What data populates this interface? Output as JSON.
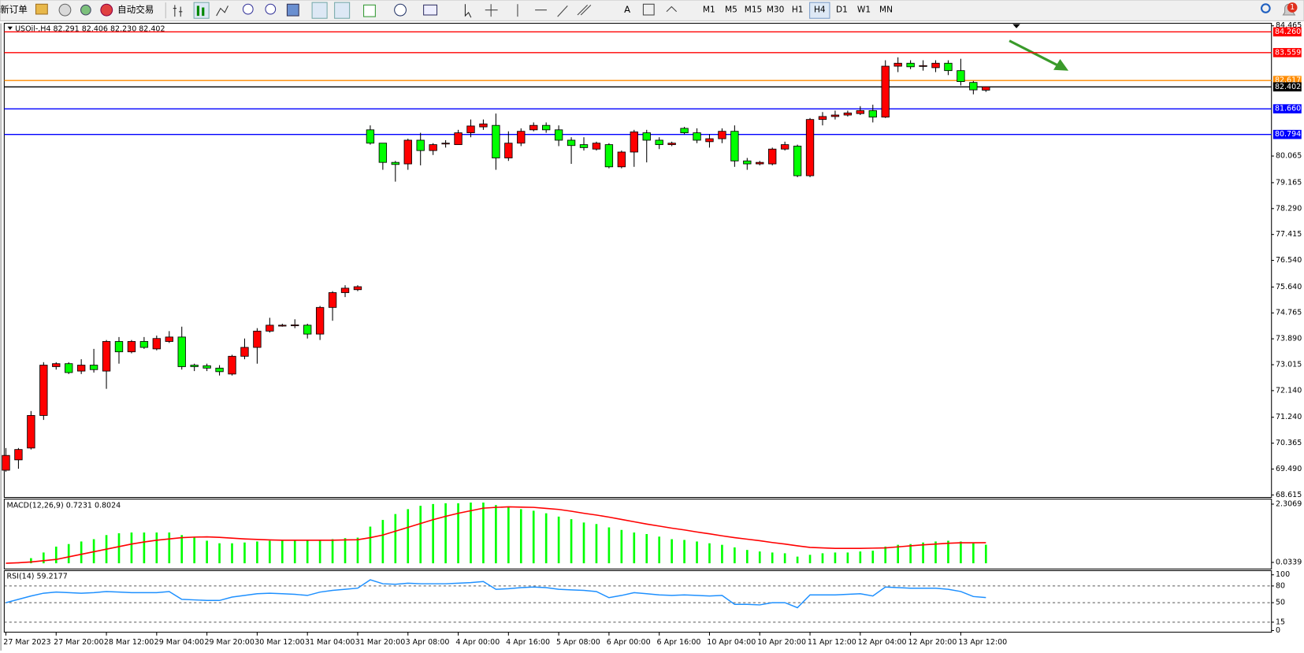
{
  "toolbar": {
    "new_order": "新订单",
    "auto_trade": "自动交易",
    "timeframes": [
      "M1",
      "M5",
      "M15",
      "M30",
      "H1",
      "H4",
      "D1",
      "W1",
      "MN"
    ],
    "active_timeframe": "H4",
    "notifications": "1"
  },
  "chart_data": [
    {
      "type": "candlestick",
      "title": "USOil-,H4  82.291 82.406 82.230 82.402",
      "categories": [
        "27 Mar 2023",
        null,
        null,
        null,
        "27 Mar 20:00",
        null,
        null,
        null,
        "28 Mar 12:00",
        null,
        null,
        null,
        "29 Mar 04:00",
        null,
        null,
        null,
        "29 Mar 20:00",
        null,
        null,
        null,
        "30 Mar 12:00",
        null,
        null,
        null,
        "31 Mar 04:00",
        null,
        null,
        null,
        "31 Mar 20:00",
        null,
        null,
        null,
        "3 Apr 08:00",
        null,
        null,
        null,
        "4 Apr 00:00",
        null,
        null,
        null,
        "4 Apr 16:00",
        null,
        null,
        null,
        "5 Apr 08:00",
        null,
        null,
        null,
        "6 Apr 00:00",
        null,
        null,
        null,
        "6 Apr 16:00",
        null,
        null,
        null,
        "10 Apr 04:00",
        null,
        null,
        null,
        "10 Apr 20:00",
        null,
        null,
        null,
        "11 Apr 12:00",
        null,
        null,
        null,
        "12 Apr 04:00",
        null,
        null,
        null,
        "12 Apr 20:00",
        null,
        null,
        null,
        "13 Apr 12:00",
        null,
        null
      ],
      "open": [
        69.45,
        69.8,
        70.2,
        71.3,
        72.95,
        73.05,
        72.8,
        73.0,
        72.8,
        73.8,
        73.45,
        73.8,
        73.55,
        73.8,
        73.95,
        73.0,
        72.98,
        72.9,
        72.7,
        73.3,
        73.6,
        74.15,
        74.32,
        74.33,
        74.35,
        74.05,
        74.95,
        75.45,
        75.55,
        80.95,
        80.5,
        79.85,
        79.8,
        80.6,
        80.25,
        80.48,
        80.45,
        80.85,
        81.05,
        81.1,
        80.0,
        80.5,
        80.95,
        81.1,
        80.95,
        80.6,
        80.45,
        80.3,
        80.45,
        79.7,
        80.2,
        80.85,
        80.6,
        80.45,
        81.0,
        80.85,
        80.55,
        80.65,
        80.9,
        79.9,
        79.8,
        79.8,
        80.3,
        80.4,
        79.4,
        81.3,
        81.4,
        81.45,
        81.5,
        81.6,
        81.38,
        83.1,
        83.2,
        83.1,
        83.05,
        83.2,
        82.95,
        82.55,
        82.291
      ],
      "high": [
        70.2,
        70.2,
        71.45,
        73.1,
        73.1,
        73.1,
        73.2,
        73.55,
        73.85,
        73.95,
        73.85,
        73.95,
        74.0,
        74.15,
        74.3,
        73.05,
        73.05,
        73.0,
        73.35,
        73.9,
        74.25,
        74.6,
        74.4,
        74.55,
        74.4,
        75.0,
        75.5,
        75.7,
        75.7,
        81.1,
        80.5,
        79.9,
        80.65,
        80.85,
        80.5,
        80.6,
        80.95,
        81.3,
        81.3,
        81.5,
        80.9,
        81.0,
        81.2,
        81.2,
        81.1,
        80.7,
        80.7,
        80.55,
        80.5,
        80.25,
        80.95,
        80.95,
        80.7,
        80.55,
        81.05,
        81.0,
        80.8,
        81.0,
        81.1,
        80.0,
        79.9,
        80.35,
        80.55,
        80.45,
        81.35,
        81.55,
        81.6,
        81.6,
        81.75,
        81.8,
        83.3,
        83.4,
        83.3,
        83.3,
        83.3,
        83.3,
        83.35,
        82.6,
        82.406
      ],
      "low": [
        69.4,
        69.5,
        70.15,
        71.15,
        72.85,
        72.7,
        72.7,
        72.75,
        72.2,
        73.05,
        73.4,
        73.55,
        73.5,
        73.75,
        72.85,
        72.8,
        72.8,
        72.65,
        72.65,
        73.2,
        73.05,
        74.1,
        74.3,
        74.25,
        73.9,
        73.85,
        74.5,
        75.3,
        75.5,
        80.45,
        79.6,
        79.2,
        79.6,
        79.75,
        80.1,
        80.35,
        80.45,
        80.7,
        80.95,
        79.6,
        79.9,
        80.4,
        80.9,
        80.85,
        80.4,
        79.8,
        80.25,
        80.25,
        79.65,
        79.65,
        79.7,
        79.85,
        80.3,
        80.4,
        80.8,
        80.5,
        80.35,
        80.5,
        79.7,
        79.6,
        79.75,
        79.75,
        80.25,
        79.35,
        79.35,
        81.1,
        81.3,
        81.4,
        81.45,
        81.2,
        81.35,
        82.9,
        83.0,
        82.95,
        82.9,
        82.8,
        82.45,
        82.15,
        82.23
      ],
      "close": [
        69.95,
        70.15,
        71.3,
        73.0,
        73.05,
        72.75,
        73.0,
        72.85,
        73.8,
        73.45,
        73.8,
        73.6,
        73.9,
        73.95,
        72.95,
        72.95,
        72.9,
        72.78,
        73.3,
        73.6,
        74.15,
        74.35,
        74.35,
        74.36,
        74.05,
        74.95,
        75.45,
        75.6,
        75.65,
        80.5,
        79.85,
        79.78,
        80.6,
        80.25,
        80.45,
        80.5,
        80.85,
        81.08,
        81.15,
        80.0,
        80.5,
        80.9,
        81.1,
        80.95,
        80.6,
        80.42,
        80.35,
        80.5,
        79.7,
        80.2,
        80.88,
        80.6,
        80.45,
        80.5,
        80.85,
        80.6,
        80.65,
        80.9,
        79.9,
        79.8,
        79.85,
        80.3,
        80.45,
        79.4,
        81.3,
        81.4,
        81.45,
        81.52,
        81.6,
        81.38,
        83.1,
        83.2,
        83.08,
        83.12,
        83.2,
        82.95,
        82.58,
        82.3,
        82.402
      ],
      "up_color": "#ff0000",
      "down_color": "#00ff00",
      "ylim": [
        68.615,
        84.465
      ],
      "yticks": [
        84.465,
        80.065,
        79.165,
        {
          "value": 78.29,
          "label": "78.290"
        },
        77.415,
        {
          "value": 76.54,
          "label": "76.540"
        },
        {
          "value": 75.64,
          "label": "75.640"
        },
        74.765,
        {
          "value": 73.89,
          "label": "73.890"
        },
        73.015,
        {
          "value": 72.14,
          "label": "72.140"
        },
        {
          "value": 71.24,
          "label": "71.240"
        },
        70.365,
        {
          "value": 69.49,
          "label": "69.490"
        },
        68.615
      ],
      "levels": [
        {
          "value": 84.26,
          "label": "84.260",
          "color": "#ff0000"
        },
        {
          "value": 83.559,
          "label": "83.559",
          "color": "#ff0000"
        },
        {
          "value": 82.617,
          "label": "82.617",
          "color": "#ff8c00"
        },
        {
          "value": 82.402,
          "label": "82.402",
          "color": "#000000"
        },
        {
          "value": 81.66,
          "label": "81.660",
          "color": "#0000ff"
        },
        {
          "value": 80.794,
          "label": "80.794",
          "color": "#0000ff"
        }
      ],
      "grid": false
    },
    {
      "type": "macd",
      "title": "MACD(12,26,9) 0.7231 0.8024",
      "histogram": {
        "color": "#00ff00",
        "values": [
          0.0,
          0.03,
          0.2,
          0.42,
          0.65,
          0.75,
          0.85,
          0.94,
          1.1,
          1.17,
          1.2,
          1.2,
          1.2,
          1.2,
          1.1,
          1.0,
          0.88,
          0.78,
          0.78,
          0.81,
          0.85,
          0.88,
          0.88,
          0.88,
          0.88,
          0.91,
          0.94,
          0.98,
          1.0,
          1.43,
          1.69,
          1.92,
          2.11,
          2.24,
          2.31,
          2.34,
          2.34,
          2.37,
          2.37,
          2.27,
          2.21,
          2.11,
          2.05,
          1.95,
          1.82,
          1.72,
          1.59,
          1.53,
          1.4,
          1.3,
          1.2,
          1.14,
          1.04,
          0.94,
          0.91,
          0.85,
          0.78,
          0.72,
          0.62,
          0.52,
          0.46,
          0.42,
          0.39,
          0.26,
          0.33,
          0.39,
          0.42,
          0.42,
          0.46,
          0.49,
          0.65,
          0.72,
          0.75,
          0.81,
          0.85,
          0.88,
          0.85,
          0.78,
          0.7231
        ]
      },
      "signal": {
        "color": "#ff0000",
        "values": [
          0.0,
          0.02,
          0.05,
          0.1,
          0.15,
          0.25,
          0.35,
          0.45,
          0.55,
          0.65,
          0.75,
          0.83,
          0.9,
          0.95,
          1.0,
          1.02,
          1.03,
          1.01,
          0.98,
          0.95,
          0.93,
          0.91,
          0.9,
          0.9,
          0.9,
          0.9,
          0.9,
          0.91,
          0.92,
          1.0,
          1.1,
          1.25,
          1.4,
          1.55,
          1.7,
          1.83,
          1.95,
          2.05,
          2.15,
          2.18,
          2.2,
          2.19,
          2.18,
          2.14,
          2.1,
          2.03,
          1.95,
          1.88,
          1.8,
          1.71,
          1.62,
          1.53,
          1.45,
          1.37,
          1.3,
          1.22,
          1.15,
          1.07,
          1.0,
          0.94,
          0.88,
          0.81,
          0.75,
          0.68,
          0.62,
          0.6,
          0.58,
          0.58,
          0.58,
          0.59,
          0.6,
          0.64,
          0.68,
          0.72,
          0.75,
          0.78,
          0.8,
          0.8,
          0.8024
        ]
      },
      "ylim": [
        -0.19,
        2.47
      ],
      "yticks": [
        2.3069,
        0.0339
      ]
    },
    {
      "type": "line",
      "title": "RSI(14) 59.2177",
      "series": [
        {
          "color": "#1e90ff",
          "values": [
            50,
            56,
            62,
            67,
            69,
            68,
            67,
            68,
            70,
            69,
            68,
            68,
            68,
            70,
            56,
            55,
            54,
            54,
            60,
            63,
            66,
            67,
            66,
            65,
            63,
            69,
            72,
            74,
            76,
            91,
            84,
            83,
            85,
            84,
            84,
            84,
            85,
            86,
            88,
            74,
            75,
            77,
            78,
            77,
            74,
            73,
            72,
            70,
            59,
            63,
            68,
            66,
            64,
            63,
            64,
            63,
            62,
            63,
            47,
            47,
            46,
            50,
            50,
            41,
            64,
            64,
            64,
            65,
            66,
            62,
            78,
            77,
            76,
            76,
            76,
            74,
            70,
            61,
            59.2177
          ]
        }
      ],
      "ylim": [
        0,
        100
      ],
      "yticks": [
        100,
        80,
        50,
        15,
        0
      ]
    }
  ]
}
